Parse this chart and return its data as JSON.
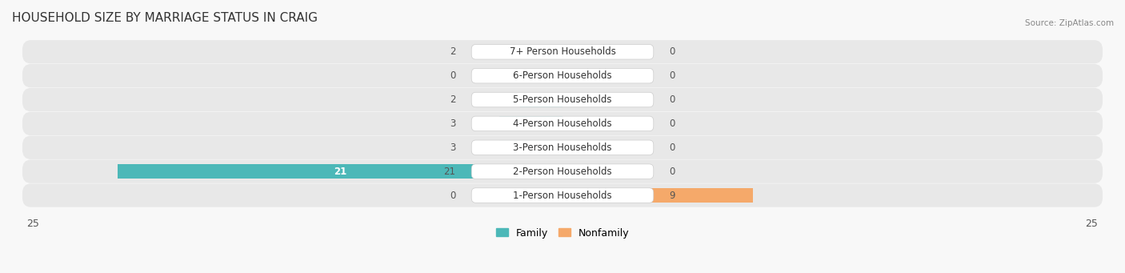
{
  "title": "HOUSEHOLD SIZE BY MARRIAGE STATUS IN CRAIG",
  "source": "Source: ZipAtlas.com",
  "categories": [
    "7+ Person Households",
    "6-Person Households",
    "5-Person Households",
    "4-Person Households",
    "3-Person Households",
    "2-Person Households",
    "1-Person Households"
  ],
  "family_values": [
    2,
    0,
    2,
    3,
    3,
    21,
    0
  ],
  "nonfamily_values": [
    0,
    0,
    0,
    0,
    0,
    0,
    9
  ],
  "family_color": "#4cb8b8",
  "nonfamily_color": "#f5a96a",
  "bg_color": "#f0f0f0",
  "bar_bg_color": "#e0e0e0",
  "xlim": 25,
  "bar_height": 0.6,
  "label_fontsize": 9,
  "title_fontsize": 11,
  "legend_family": "Family",
  "legend_nonfamily": "Nonfamily"
}
